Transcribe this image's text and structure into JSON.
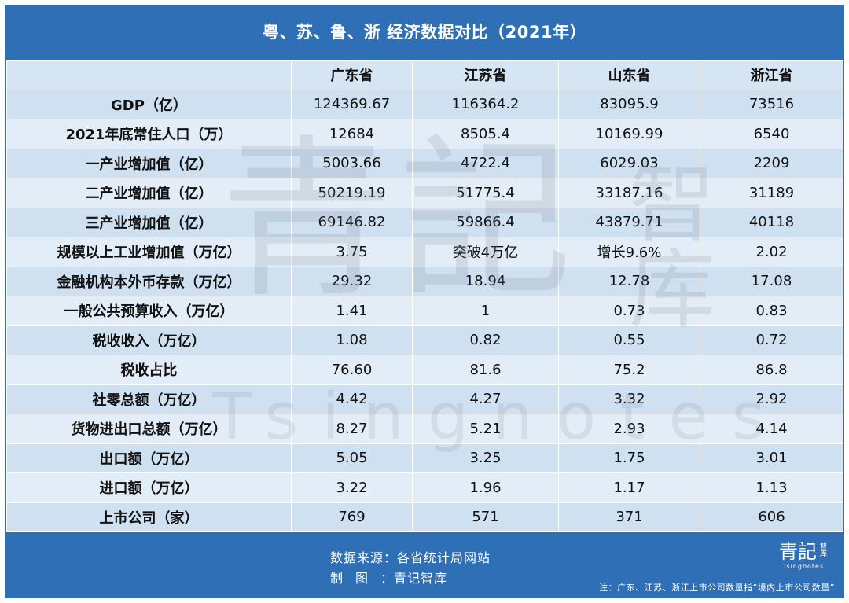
{
  "title": "粤、苏、鲁、浙 经济数据对比（2021年）",
  "table": {
    "columns": [
      "",
      "广东省",
      "江苏省",
      "山东省",
      "浙江省"
    ],
    "rows": [
      [
        "GDP（亿）",
        "124369.67",
        "116364.2",
        "83095.9",
        "73516"
      ],
      [
        "2021年底常住人口（万）",
        "12684",
        "8505.4",
        "10169.99",
        "6540"
      ],
      [
        "一产业增加值（亿）",
        "5003.66",
        "4722.4",
        "6029.03",
        "2209"
      ],
      [
        "二产业增加值（亿）",
        "50219.19",
        "51775.4",
        "33187.16",
        "31189"
      ],
      [
        "三产业增加值（亿）",
        "69146.82",
        "59866.4",
        "43879.71",
        "40118"
      ],
      [
        "规模以上工业增加值（万亿）",
        "3.75",
        "突破4万亿",
        "增长9.6%",
        "2.02"
      ],
      [
        "金融机构本外币存款（万亿）",
        "29.32",
        "18.94",
        "12.78",
        "17.08"
      ],
      [
        "一般公共预算收入（万亿）",
        "1.41",
        "1",
        "0.73",
        "0.83"
      ],
      [
        "税收收入（万亿）",
        "1.08",
        "0.82",
        "0.55",
        "0.72"
      ],
      [
        "税收占比",
        "76.60",
        "81.6",
        "75.2",
        "86.8"
      ],
      [
        "社零总额（万亿）",
        "4.42",
        "4.27",
        "3.32",
        "2.92"
      ],
      [
        "货物进出口总额（万亿）",
        "8.27",
        "5.21",
        "2.93",
        "4.14"
      ],
      [
        "出口额（万亿）",
        "5.05",
        "3.25",
        "1.75",
        "3.01"
      ],
      [
        "进口额（万亿）",
        "3.22",
        "1.96",
        "1.17",
        "1.13"
      ],
      [
        "上市公司（家）",
        "769",
        "571",
        "371",
        "606"
      ]
    ]
  },
  "watermark": {
    "cn_big": "青記",
    "cn_small": "智库",
    "en": "Tsingnotes"
  },
  "footer": {
    "source": "数据来源：各省统计局网站",
    "maker_label_1": "制",
    "maker_label_2": "图",
    "maker_value": "：青记智库",
    "note": "注：广东、江苏、浙江上市公司数量指“境内上市公司数量”",
    "logo_main": "青記",
    "logo_side": "智库",
    "logo_en": "Tsingnotes"
  },
  "colors": {
    "frame": "#2f6fb6",
    "row_odd": "#cfe0f1",
    "row_even": "#e3edf7"
  }
}
